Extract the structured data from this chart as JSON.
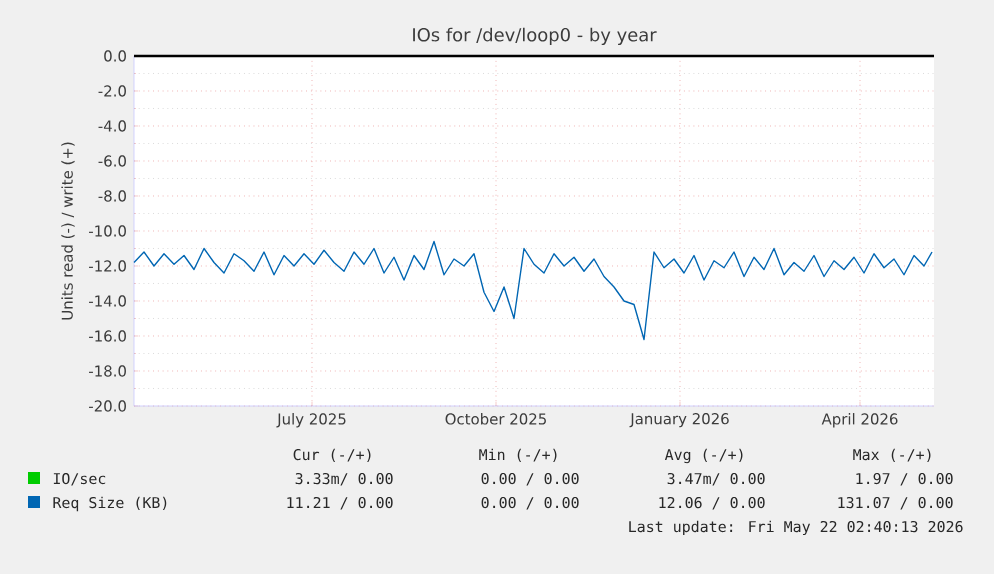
{
  "chart_data": {
    "type": "line",
    "title": "IOs for /dev/loop0 - by year",
    "ylabel": "Units read (-) / write (+)",
    "xlim": [
      "2025-04-17",
      "2026-05-22"
    ],
    "xticks": [
      {
        "value": "2025-07-15",
        "label": "July 2025"
      },
      {
        "value": "2025-10-15",
        "label": "October 2025"
      },
      {
        "value": "2026-01-15",
        "label": "January 2026"
      },
      {
        "value": "2026-04-15",
        "label": "April 2026"
      }
    ],
    "ylim": [
      -20,
      0
    ],
    "yticks": [
      {
        "value": -20,
        "label": "-20.0"
      },
      {
        "value": -18,
        "label": "-18.0"
      },
      {
        "value": -16,
        "label": "-16.0"
      },
      {
        "value": -14,
        "label": "-14.0"
      },
      {
        "value": -12,
        "label": "-12.0"
      },
      {
        "value": -10,
        "label": "-10.0"
      },
      {
        "value": -8,
        "label": "-8.0"
      },
      {
        "value": -6,
        "label": "-6.0"
      },
      {
        "value": -4,
        "label": "-4.0"
      },
      {
        "value": -2,
        "label": "-2.0"
      },
      {
        "value": 0,
        "label": "0.0"
      }
    ],
    "grid": true,
    "legend": "bottom",
    "marker": "none",
    "line_style": "solid",
    "ref_lines": [
      {
        "axis": "y",
        "value": 0,
        "color": "#000000"
      }
    ],
    "series": [
      {
        "name": "IO/sec",
        "color": "#00cc00"
      },
      {
        "name": "Req Size (KB)",
        "color": "#0066b3",
        "x": [
          "2025-04-17",
          "2025-04-22",
          "2025-04-27",
          "2025-05-02",
          "2025-05-07",
          "2025-05-12",
          "2025-05-17",
          "2025-05-22",
          "2025-05-27",
          "2025-06-01",
          "2025-06-06",
          "2025-06-11",
          "2025-06-16",
          "2025-06-21",
          "2025-06-26",
          "2025-07-01",
          "2025-07-06",
          "2025-07-11",
          "2025-07-16",
          "2025-07-21",
          "2025-07-26",
          "2025-07-31",
          "2025-08-05",
          "2025-08-10",
          "2025-08-15",
          "2025-08-20",
          "2025-08-25",
          "2025-08-30",
          "2025-09-04",
          "2025-09-09",
          "2025-09-14",
          "2025-09-19",
          "2025-09-24",
          "2025-09-29",
          "2025-10-04",
          "2025-10-09",
          "2025-10-14",
          "2025-10-19",
          "2025-10-24",
          "2025-10-29",
          "2025-11-03",
          "2025-11-08",
          "2025-11-13",
          "2025-11-18",
          "2025-11-23",
          "2025-11-28",
          "2025-12-03",
          "2025-12-08",
          "2025-12-13",
          "2025-12-18",
          "2025-12-23",
          "2025-12-28",
          "2026-01-02",
          "2026-01-07",
          "2026-01-12",
          "2026-01-17",
          "2026-01-22",
          "2026-01-27",
          "2026-02-01",
          "2026-02-06",
          "2026-02-11",
          "2026-02-16",
          "2026-02-21",
          "2026-02-26",
          "2026-03-03",
          "2026-03-08",
          "2026-03-13",
          "2026-03-18",
          "2026-03-23",
          "2026-03-28",
          "2026-04-02",
          "2026-04-07",
          "2026-04-12",
          "2026-04-17",
          "2026-04-22",
          "2026-04-27",
          "2026-05-02",
          "2026-05-07",
          "2026-05-12",
          "2026-05-17",
          "2026-05-21"
        ],
        "values": [
          -11.8,
          -11.2,
          -12.0,
          -11.3,
          -11.9,
          -11.4,
          -12.2,
          -11.0,
          -11.8,
          -12.4,
          -11.3,
          -11.7,
          -12.3,
          -11.2,
          -12.5,
          -11.4,
          -12.0,
          -11.3,
          -11.9,
          -11.1,
          -11.8,
          -12.3,
          -11.2,
          -11.9,
          -11.0,
          -12.4,
          -11.5,
          -12.8,
          -11.4,
          -12.2,
          -10.6,
          -12.5,
          -11.6,
          -12.0,
          -11.3,
          -13.5,
          -14.6,
          -13.2,
          -15.0,
          -11.0,
          -11.9,
          -12.4,
          -11.3,
          -12.0,
          -11.5,
          -12.3,
          -11.6,
          -12.6,
          -13.2,
          -14.0,
          -14.2,
          -16.2,
          -11.2,
          -12.1,
          -11.6,
          -12.4,
          -11.4,
          -12.8,
          -11.7,
          -12.1,
          -11.2,
          -12.6,
          -11.5,
          -12.2,
          -11.0,
          -12.5,
          -11.8,
          -12.3,
          -11.4,
          -12.6,
          -11.7,
          -12.2,
          -11.5,
          -12.4,
          -11.3,
          -12.1,
          -11.6,
          -12.5,
          -11.4,
          -12.0,
          -11.2
        ]
      }
    ],
    "annotations": [
      "Cur (-/+)",
      "Min (-/+)",
      "Avg (-/+)",
      "Max (-/+)",
      "3.33m/ 0.00",
      "0.00 / 0.00",
      "3.47m/ 0.00",
      "1.97 / 0.00",
      "11.21 / 0.00",
      "0.00 / 0.00",
      "12.06 / 0.00",
      "131.07 / 0.00",
      "Last update: Fri May 22 02:40:13 2026"
    ]
  }
}
